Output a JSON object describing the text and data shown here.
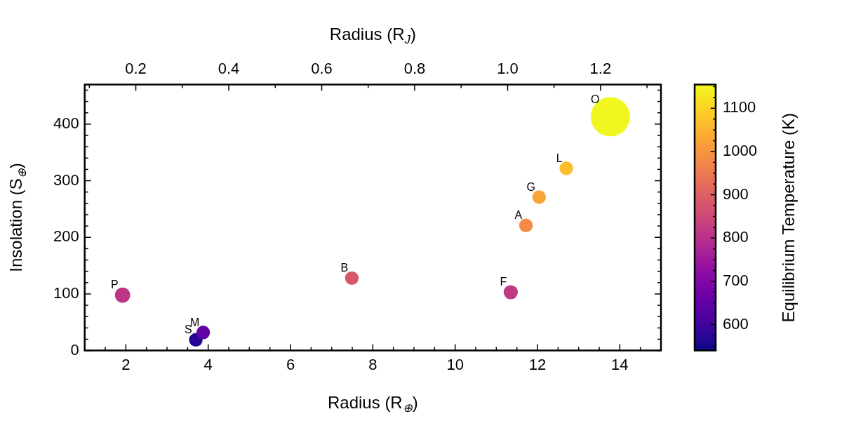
{
  "chart_data": {
    "type": "bubble",
    "xlabel": "Radius (R$_{⊕}$)",
    "ylabel": "Insolation (S$_{⊕}$)",
    "x2label": "Radius (R$_{J}$)",
    "clabel": "Equilibrium Temperature (K)",
    "x": [
      1.92,
      3.7,
      3.88,
      7.49,
      11.35,
      11.72,
      12.04,
      12.7,
      13.77
    ],
    "values": [
      98,
      19,
      32,
      128,
      103,
      221,
      271,
      322,
      413
    ],
    "sizes": [
      0.15,
      0.12,
      0.12,
      0.12,
      0.13,
      0.12,
      0.12,
      0.12,
      1
    ],
    "cvalues": [
      810,
      570,
      650,
      880,
      820,
      980,
      1030,
      1070,
      1150
    ],
    "annotations": [
      {
        "text": "P",
        "x": 1.92,
        "y": 98
      },
      {
        "text": "S",
        "x": 3.7,
        "y": 19
      },
      {
        "text": "M",
        "x": 3.88,
        "y": 32
      },
      {
        "text": "B",
        "x": 7.49,
        "y": 128
      },
      {
        "text": "F",
        "x": 11.35,
        "y": 103
      },
      {
        "text": "A",
        "x": 11.72,
        "y": 221
      },
      {
        "text": "G",
        "x": 12.04,
        "y": 271
      },
      {
        "text": "L",
        "x": 12.7,
        "y": 322
      },
      {
        "text": "O",
        "x": 13.77,
        "y": 413
      }
    ],
    "xlim": [
      1,
      15
    ],
    "xticks": [
      {
        "value": 1,
        "label": null
      },
      {
        "value": 1.5,
        "label": null
      },
      2,
      {
        "value": 2.5,
        "label": null
      },
      {
        "value": 3,
        "label": null
      },
      {
        "value": 3.5,
        "label": null
      },
      4,
      {
        "value": 4.5,
        "label": null
      },
      {
        "value": 5,
        "label": null
      },
      {
        "value": 5.5,
        "label": null
      },
      6,
      {
        "value": 6.5,
        "label": null
      },
      {
        "value": 7,
        "label": null
      },
      {
        "value": 7.5,
        "label": null
      },
      8,
      {
        "value": 8.5,
        "label": null
      },
      {
        "value": 9,
        "label": null
      },
      {
        "value": 9.5,
        "label": null
      },
      10,
      {
        "value": 10.5,
        "label": null
      },
      {
        "value": 11,
        "label": null
      },
      {
        "value": 11.5,
        "label": null
      },
      12,
      {
        "value": 12.5,
        "label": null
      },
      {
        "value": 13,
        "label": null
      },
      {
        "value": 13.5,
        "label": null
      },
      14,
      {
        "value": 14.5,
        "label": null
      },
      {
        "value": 15,
        "label": null
      }
    ],
    "ylim": [
      0,
      470
    ],
    "yticks": [
      0,
      {
        "value": 20,
        "label": null
      },
      {
        "value": 40,
        "label": null
      },
      {
        "value": 60,
        "label": null
      },
      {
        "value": 80,
        "label": null
      },
      100,
      {
        "value": 120,
        "label": null
      },
      {
        "value": 140,
        "label": null
      },
      {
        "value": 160,
        "label": null
      },
      {
        "value": 180,
        "label": null
      },
      200,
      {
        "value": 220,
        "label": null
      },
      {
        "value": 240,
        "label": null
      },
      {
        "value": 260,
        "label": null
      },
      {
        "value": 280,
        "label": null
      },
      300,
      {
        "value": 320,
        "label": null
      },
      {
        "value": 340,
        "label": null
      },
      {
        "value": 360,
        "label": null
      },
      {
        "value": 380,
        "label": null
      },
      400,
      {
        "value": 420,
        "label": null
      },
      {
        "value": 440,
        "label": null
      },
      {
        "value": 460,
        "label": null
      }
    ],
    "x2lim": [
      0.09,
      1.33
    ],
    "x2ticks": [
      {
        "value": 0.1,
        "label": null
      },
      {
        "value": 0.2,
        "label": "0.2"
      },
      {
        "value": 0.3,
        "label": null
      },
      {
        "value": 0.4,
        "label": "0.4"
      },
      {
        "value": 0.5,
        "label": null
      },
      {
        "value": 0.6,
        "label": "0.6"
      },
      {
        "value": 0.7,
        "label": null
      },
      {
        "value": 0.8,
        "label": "0.8"
      },
      {
        "value": 0.9,
        "label": null
      },
      {
        "value": 1.0,
        "label": "1.0"
      },
      {
        "value": 1.1,
        "label": null
      },
      {
        "value": 1.2,
        "label": "1.2"
      },
      {
        "value": 1.3,
        "label": null
      }
    ],
    "clim": [
      540,
      1155
    ],
    "cticks": [
      {
        "value": 550,
        "label": null
      },
      {
        "value": 575,
        "label": null
      },
      600,
      {
        "value": 625,
        "label": null
      },
      {
        "value": 650,
        "label": null
      },
      {
        "value": 675,
        "label": null
      },
      700,
      {
        "value": 725,
        "label": null
      },
      {
        "value": 750,
        "label": null
      },
      {
        "value": 775,
        "label": null
      },
      800,
      {
        "value": 825,
        "label": null
      },
      {
        "value": 850,
        "label": null
      },
      {
        "value": 875,
        "label": null
      },
      900,
      {
        "value": 925,
        "label": null
      },
      {
        "value": 950,
        "label": null
      },
      {
        "value": 975,
        "label": null
      },
      1000,
      {
        "value": 1025,
        "label": null
      },
      {
        "value": 1050,
        "label": null
      },
      {
        "value": 1075,
        "label": null
      },
      1100,
      {
        "value": 1125,
        "label": null
      },
      {
        "value": 1150,
        "label": null
      }
    ]
  }
}
